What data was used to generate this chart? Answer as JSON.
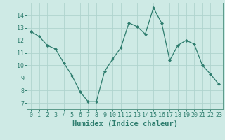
{
  "x": [
    0,
    1,
    2,
    3,
    4,
    5,
    6,
    7,
    8,
    9,
    10,
    11,
    12,
    13,
    14,
    15,
    16,
    17,
    18,
    19,
    20,
    21,
    22,
    23
  ],
  "y": [
    12.7,
    12.3,
    11.6,
    11.3,
    10.2,
    9.2,
    7.9,
    7.1,
    7.1,
    9.5,
    10.5,
    11.4,
    13.4,
    13.1,
    12.5,
    14.6,
    13.4,
    10.4,
    11.6,
    12.0,
    11.7,
    10.0,
    9.3,
    8.5
  ],
  "line_color": "#2e7d6e",
  "marker": "D",
  "markersize": 2.0,
  "linewidth": 0.9,
  "xlabel": "Humidex (Indice chaleur)",
  "ylim": [
    6.5,
    15.0
  ],
  "xlim": [
    -0.5,
    23.5
  ],
  "yticks": [
    7,
    8,
    9,
    10,
    11,
    12,
    13,
    14
  ],
  "xticks": [
    0,
    1,
    2,
    3,
    4,
    5,
    6,
    7,
    8,
    9,
    10,
    11,
    12,
    13,
    14,
    15,
    16,
    17,
    18,
    19,
    20,
    21,
    22,
    23
  ],
  "bg_color": "#ceeae5",
  "grid_color": "#afd4ce",
  "tick_fontsize": 6.0,
  "xlabel_fontsize": 7.5,
  "spine_color": "#5a9a8a"
}
